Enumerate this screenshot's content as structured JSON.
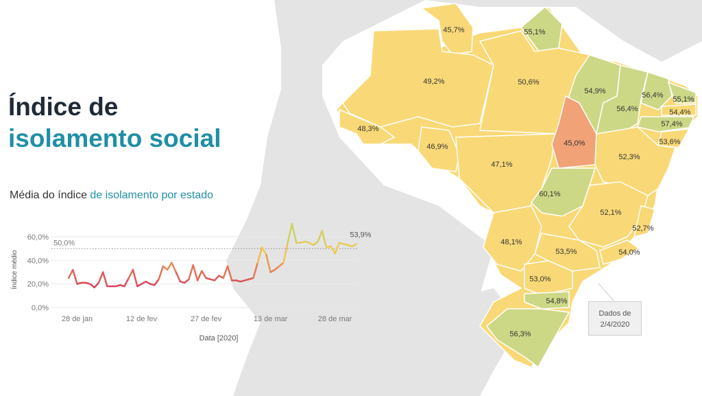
{
  "colors": {
    "yellow": "#f9d977",
    "green": "#cdd887",
    "orange": "#f1a277",
    "title_dark": "#1f2a36",
    "teal": "#1f8fa5",
    "line_low": "#d8455c",
    "line_high": "#b6d76a",
    "land": "#e4e4e4",
    "water": "#ffffff"
  },
  "title": {
    "line1": "Índice de",
    "line2": "isolamento social"
  },
  "subtitle": {
    "prefix": "Média do índice ",
    "highlight": "de isolamento por estado"
  },
  "map": {
    "labels": [
      "45,7%",
      "55,1%",
      "49,2%",
      "50,6%",
      "54,9%",
      "56,4%",
      "55,1%",
      "56,4%",
      "54,4%",
      "57,4%",
      "48,3%",
      "46,9%",
      "45,0%",
      "53,6%",
      "52,3%",
      "47,1%",
      "60,1%",
      "52,1%",
      "52,7%",
      "48,1%",
      "53,5%",
      "54,0%",
      "53,0%",
      "54,8%",
      "56,3%"
    ]
  },
  "source_note": {
    "line1": "Dados de",
    "line2": "2/4/2020"
  },
  "chart_data": {
    "type": "line",
    "title": "Média do índice de isolamento por estado",
    "xlabel": "Data [2020]",
    "ylabel": "Índice médio",
    "y_ticks": [
      "60,0%",
      "40,0%",
      "20,0%",
      "0,0%"
    ],
    "x_ticks": [
      "28 de jan",
      "12 de fev",
      "27 de fev",
      "13 de mar",
      "28 de mar"
    ],
    "ylim": [
      0,
      70
    ],
    "reference_line": {
      "value": 50,
      "label": "50,0%"
    },
    "last_label": "53,9%",
    "grid": true,
    "series": [
      {
        "x": [
          "2020-01-26",
          "2020-01-27",
          "2020-01-28",
          "2020-01-29",
          "2020-01-30",
          "2020-01-31",
          "2020-02-01",
          "2020-02-02",
          "2020-02-03",
          "2020-02-04",
          "2020-02-05",
          "2020-02-06",
          "2020-02-07",
          "2020-02-08",
          "2020-02-09",
          "2020-02-10",
          "2020-02-11",
          "2020-02-12",
          "2020-02-13",
          "2020-02-14",
          "2020-02-15",
          "2020-02-16",
          "2020-02-17",
          "2020-02-18",
          "2020-02-19",
          "2020-02-20",
          "2020-02-21",
          "2020-02-22",
          "2020-02-23",
          "2020-02-24",
          "2020-02-25",
          "2020-02-26",
          "2020-02-27",
          "2020-02-28",
          "2020-02-29",
          "2020-03-01",
          "2020-03-02",
          "2020-03-03",
          "2020-03-04",
          "2020-03-05",
          "2020-03-06",
          "2020-03-07",
          "2020-03-08",
          "2020-03-09",
          "2020-03-10",
          "2020-03-11",
          "2020-03-12",
          "2020-03-13",
          "2020-03-14",
          "2020-03-15",
          "2020-03-16",
          "2020-03-17",
          "2020-03-18",
          "2020-03-19",
          "2020-03-20",
          "2020-03-21",
          "2020-03-22",
          "2020-03-23",
          "2020-03-24",
          "2020-03-25",
          "2020-03-26",
          "2020-03-27",
          "2020-03-28",
          "2020-03-29",
          "2020-03-30",
          "2020-03-31",
          "2020-04-01",
          "2020-04-02"
        ],
        "values": [
          25,
          32,
          20,
          21,
          21,
          20,
          17,
          21,
          30,
          18,
          18,
          18,
          19,
          18,
          25,
          32,
          18,
          20,
          22,
          20,
          19,
          24,
          35,
          32,
          38,
          30,
          22,
          21,
          24,
          36,
          23,
          31,
          25,
          24,
          23,
          27,
          25,
          35,
          23,
          23,
          22,
          23,
          24,
          25,
          38,
          51,
          45,
          30,
          32,
          35,
          38,
          55,
          71,
          55,
          55,
          56,
          55,
          53,
          56,
          65,
          51,
          52,
          46,
          55,
          54,
          53,
          52,
          54
        ]
      }
    ]
  }
}
